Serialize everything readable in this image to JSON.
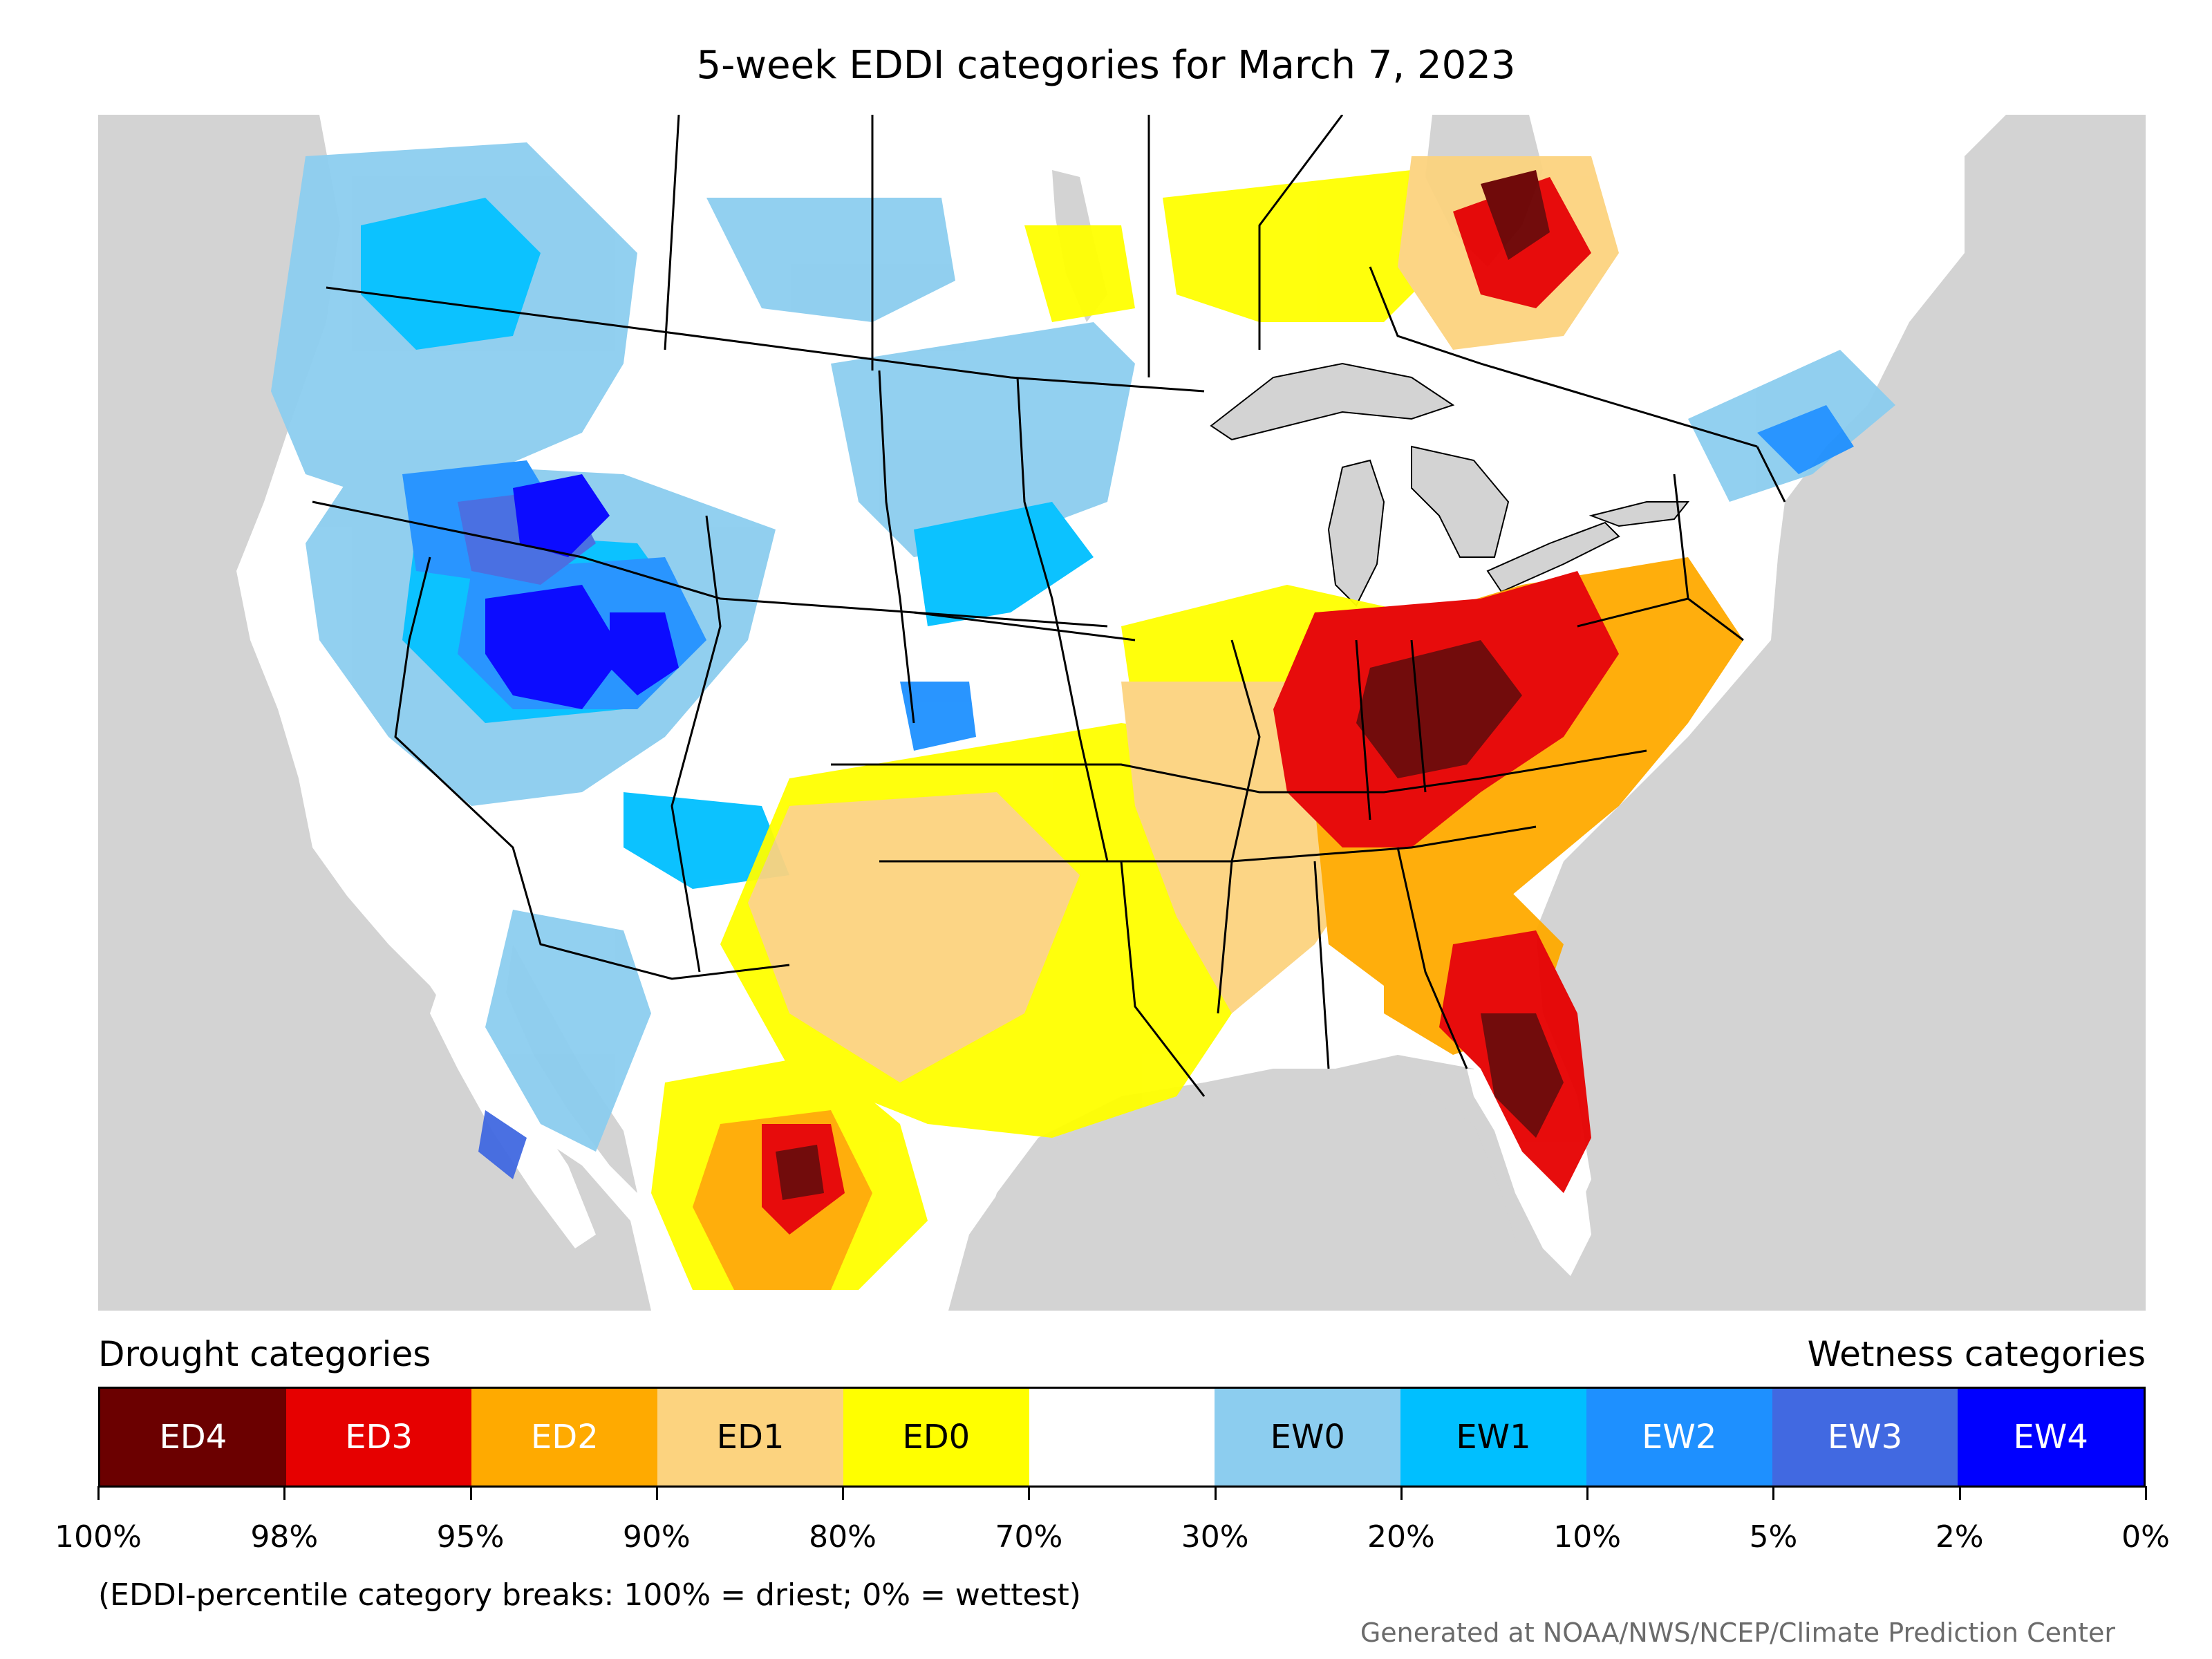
{
  "title": "5-week EDDI categories for March 7, 2023",
  "legend": {
    "drought_heading": "Drought categories",
    "wetness_heading": "Wetness categories",
    "categories": [
      {
        "label": "ED4",
        "color": "#6b0000",
        "text_color": "#ffffff"
      },
      {
        "label": "ED3",
        "color": "#e60000",
        "text_color": "#ffffff"
      },
      {
        "label": "ED2",
        "color": "#ffaa00",
        "text_color": "#ffffff"
      },
      {
        "label": "ED1",
        "color": "#fcd37f",
        "text_color": "#000000"
      },
      {
        "label": "ED0",
        "color": "#ffff00",
        "text_color": "#000000"
      },
      {
        "label": "",
        "color": "#ffffff",
        "text_color": "#000000"
      },
      {
        "label": "EW0",
        "color": "#8ccdef",
        "text_color": "#000000"
      },
      {
        "label": "EW1",
        "color": "#00bfff",
        "text_color": "#000000"
      },
      {
        "label": "EW2",
        "color": "#1e90ff",
        "text_color": "#ffffff"
      },
      {
        "label": "EW3",
        "color": "#4169e1",
        "text_color": "#ffffff"
      },
      {
        "label": "EW4",
        "color": "#0000ff",
        "text_color": "#ffffff"
      }
    ],
    "breaks": [
      "100%",
      "98%",
      "95%",
      "90%",
      "80%",
      "70%",
      "30%",
      "20%",
      "10%",
      "5%",
      "2%",
      "0%"
    ],
    "note": "(EDDI-percentile category breaks: 100% = driest; 0% = wettest)"
  },
  "credit": "Generated at NOAA/NWS/NCEP/Climate Prediction Center",
  "map": {
    "land_color": "#ffffff",
    "water_color": "#d3d3d3",
    "border_color": "#000000"
  }
}
